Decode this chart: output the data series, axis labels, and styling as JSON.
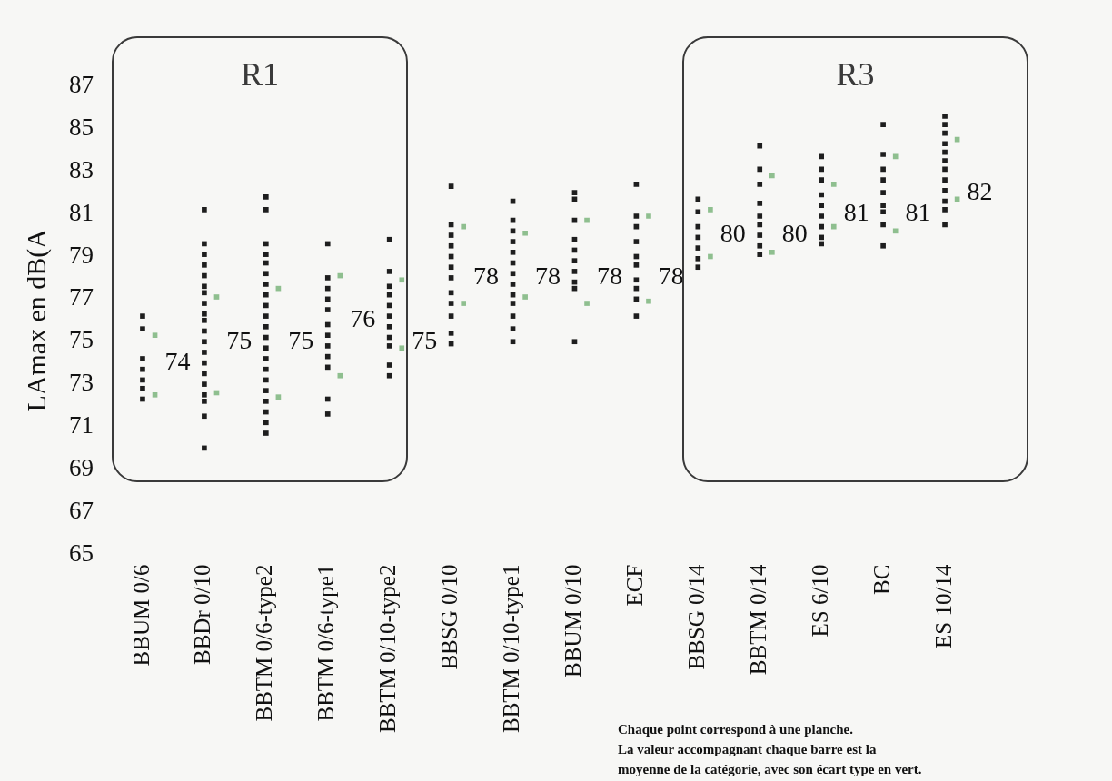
{
  "chart_data": {
    "type": "scatter",
    "ylabel": "LAmax en dB(A",
    "categories": [
      "BBUM 0/6",
      "BBDr 0/10",
      "BBTM 0/6-type2",
      "BBTM 0/6-type1",
      "BBTM 0/10-type2",
      "BBSG 0/10",
      "BBTM 0/10-type1",
      "BBUM 0/10",
      "ECF",
      "BBSG 0/14",
      "BBTM 0/14",
      "ES 6/10",
      "BC",
      "ES 10/14"
    ],
    "ylim": [
      65,
      87
    ],
    "yticks": [
      65,
      67,
      69,
      71,
      73,
      75,
      77,
      79,
      81,
      83,
      85,
      87
    ],
    "grid": false,
    "legend": false,
    "marker": "square",
    "series": [
      {
        "color": "#1e1e1e",
        "x": [
          "BBUM 0/6",
          "BBUM 0/6",
          "BBUM 0/6",
          "BBUM 0/6",
          "BBUM 0/6",
          "BBUM 0/6",
          "BBUM 0/6",
          "BBDr 0/10",
          "BBDr 0/10",
          "BBDr 0/10",
          "BBDr 0/10",
          "BBDr 0/10",
          "BBDr 0/10",
          "BBDr 0/10",
          "BBDr 0/10",
          "BBDr 0/10",
          "BBDr 0/10",
          "BBDr 0/10",
          "BBDr 0/10",
          "BBDr 0/10",
          "BBDr 0/10",
          "BBDr 0/10",
          "BBDr 0/10",
          "BBDr 0/10",
          "BBDr 0/10",
          "BBDr 0/10",
          "BBDr 0/10",
          "BBTM 0/6-type2",
          "BBTM 0/6-type2",
          "BBTM 0/6-type2",
          "BBTM 0/6-type2",
          "BBTM 0/6-type2",
          "BBTM 0/6-type2",
          "BBTM 0/6-type2",
          "BBTM 0/6-type2",
          "BBTM 0/6-type2",
          "BBTM 0/6-type2",
          "BBTM 0/6-type2",
          "BBTM 0/6-type2",
          "BBTM 0/6-type2",
          "BBTM 0/6-type2",
          "BBTM 0/6-type2",
          "BBTM 0/6-type2",
          "BBTM 0/6-type2",
          "BBTM 0/6-type2",
          "BBTM 0/6-type2",
          "BBTM 0/6-type2",
          "BBTM 0/6-type2",
          "BBTM 0/6-type1",
          "BBTM 0/6-type1",
          "BBTM 0/6-type1",
          "BBTM 0/6-type1",
          "BBTM 0/6-type1",
          "BBTM 0/6-type1",
          "BBTM 0/6-type1",
          "BBTM 0/6-type1",
          "BBTM 0/6-type1",
          "BBTM 0/6-type1",
          "BBTM 0/6-type1",
          "BBTM 0/6-type1",
          "BBTM 0/10-type2",
          "BBTM 0/10-type2",
          "BBTM 0/10-type2",
          "BBTM 0/10-type2",
          "BBTM 0/10-type2",
          "BBTM 0/10-type2",
          "BBTM 0/10-type2",
          "BBTM 0/10-type2",
          "BBTM 0/10-type2",
          "BBTM 0/10-type2",
          "BBTM 0/10-type2",
          "BBSG 0/10",
          "BBSG 0/10",
          "BBSG 0/10",
          "BBSG 0/10",
          "BBSG 0/10",
          "BBSG 0/10",
          "BBSG 0/10",
          "BBSG 0/10",
          "BBSG 0/10",
          "BBSG 0/10",
          "BBSG 0/10",
          "BBSG 0/10",
          "BBTM 0/10-type1",
          "BBTM 0/10-type1",
          "BBTM 0/10-type1",
          "BBTM 0/10-type1",
          "BBTM 0/10-type1",
          "BBTM 0/10-type1",
          "BBTM 0/10-type1",
          "BBTM 0/10-type1",
          "BBTM 0/10-type1",
          "BBTM 0/10-type1",
          "BBTM 0/10-type1",
          "BBTM 0/10-type1",
          "BBTM 0/10-type1",
          "BBUM 0/10",
          "BBUM 0/10",
          "BBUM 0/10",
          "BBUM 0/10",
          "BBUM 0/10",
          "BBUM 0/10",
          "BBUM 0/10",
          "BBUM 0/10",
          "BBUM 0/10",
          "BBUM 0/10",
          "ECF",
          "ECF",
          "ECF",
          "ECF",
          "ECF",
          "ECF",
          "ECF",
          "ECF",
          "ECF",
          "ECF",
          "BBSG 0/14",
          "BBSG 0/14",
          "BBSG 0/14",
          "BBSG 0/14",
          "BBSG 0/14",
          "BBSG 0/14",
          "BBSG 0/14",
          "BBTM 0/14",
          "BBTM 0/14",
          "BBTM 0/14",
          "BBTM 0/14",
          "BBTM 0/14",
          "BBTM 0/14",
          "BBTM 0/14",
          "BBTM 0/14",
          "BBTM 0/14",
          "ES 6/10",
          "ES 6/10",
          "ES 6/10",
          "ES 6/10",
          "ES 6/10",
          "ES 6/10",
          "ES 6/10",
          "ES 6/10",
          "ES 6/10",
          "BC",
          "BC",
          "BC",
          "BC",
          "BC",
          "BC",
          "BC",
          "BC",
          "BC",
          "ES 10/14",
          "ES 10/14",
          "ES 10/14",
          "ES 10/14",
          "ES 10/14",
          "ES 10/14",
          "ES 10/14",
          "ES 10/14",
          "ES 10/14",
          "ES 10/14",
          "ES 10/14",
          "ES 10/14"
        ],
        "values": [
          76.2,
          75.6,
          74.2,
          73.7,
          73.2,
          72.8,
          72.3,
          81.2,
          79.6,
          79.1,
          78.6,
          78.1,
          77.6,
          77.3,
          76.8,
          76.3,
          76.0,
          75.5,
          75.0,
          74.5,
          74.0,
          73.5,
          73.0,
          72.5,
          72.2,
          71.5,
          70.0,
          81.8,
          81.2,
          79.6,
          79.1,
          78.7,
          78.2,
          77.7,
          77.2,
          76.7,
          76.2,
          75.7,
          75.2,
          74.7,
          74.2,
          73.7,
          73.2,
          72.7,
          72.2,
          71.7,
          71.2,
          70.7,
          79.6,
          78.0,
          77.5,
          77.0,
          76.5,
          75.8,
          75.3,
          74.8,
          74.3,
          73.8,
          72.3,
          71.6,
          79.8,
          78.3,
          77.6,
          77.2,
          76.7,
          76.2,
          75.7,
          75.2,
          74.8,
          73.9,
          73.4,
          82.3,
          80.5,
          80.0,
          79.5,
          79.0,
          78.5,
          78.0,
          77.3,
          76.8,
          76.2,
          75.4,
          74.9,
          81.6,
          80.7,
          80.2,
          79.7,
          79.2,
          78.7,
          78.2,
          77.7,
          77.2,
          76.8,
          76.2,
          75.6,
          75.0,
          82.0,
          81.7,
          80.7,
          79.8,
          79.3,
          78.8,
          78.3,
          77.8,
          77.5,
          75.0,
          82.4,
          80.9,
          80.4,
          79.7,
          79.0,
          78.6,
          77.9,
          77.5,
          77.0,
          76.2,
          81.7,
          81.1,
          80.4,
          79.9,
          79.4,
          78.9,
          78.5,
          84.2,
          83.1,
          82.4,
          81.5,
          80.9,
          80.5,
          80.0,
          79.5,
          79.1,
          83.7,
          83.1,
          82.6,
          81.9,
          81.4,
          80.9,
          80.4,
          79.9,
          79.6,
          85.2,
          83.8,
          83.1,
          82.6,
          82.0,
          81.4,
          81.1,
          80.5,
          79.5,
          85.6,
          85.2,
          84.8,
          84.3,
          83.9,
          83.5,
          83.1,
          82.6,
          82.1,
          81.6,
          81.2,
          80.5
        ]
      },
      {
        "color": "#8fbf8f",
        "x": [
          "BBUM 0/6",
          "BBUM 0/6",
          "BBDr 0/10",
          "BBDr 0/10",
          "BBTM 0/6-type2",
          "BBTM 0/6-type2",
          "BBTM 0/6-type1",
          "BBTM 0/6-type1",
          "BBTM 0/10-type2",
          "BBTM 0/10-type2",
          "BBSG 0/10",
          "BBSG 0/10",
          "BBTM 0/10-type1",
          "BBTM 0/10-type1",
          "BBUM 0/10",
          "BBUM 0/10",
          "ECF",
          "ECF",
          "BBSG 0/14",
          "BBSG 0/14",
          "BBTM 0/14",
          "BBTM 0/14",
          "ES 6/10",
          "ES 6/10",
          "BC",
          "BC",
          "ES 10/14",
          "ES 10/14"
        ],
        "values": [
          72.5,
          75.3,
          72.6,
          77.1,
          72.4,
          77.5,
          73.4,
          78.1,
          74.7,
          77.9,
          76.8,
          80.4,
          77.1,
          80.1,
          76.8,
          80.7,
          76.9,
          80.9,
          79.0,
          81.2,
          79.2,
          82.8,
          80.4,
          82.4,
          80.2,
          83.7,
          81.7,
          84.5
        ]
      }
    ],
    "annotations": [
      {
        "text": "74",
        "x": "BBUM 0/6",
        "y": 74
      },
      {
        "text": "75",
        "x": "BBDr 0/10",
        "y": 75
      },
      {
        "text": "75",
        "x": "BBTM 0/6-type2",
        "y": 75
      },
      {
        "text": "76",
        "x": "BBTM 0/6-type1",
        "y": 76
      },
      {
        "text": "75",
        "x": "BBTM 0/10-type2",
        "y": 75
      },
      {
        "text": "78",
        "x": "BBSG 0/10",
        "y": 78
      },
      {
        "text": "78",
        "x": "BBTM 0/10-type1",
        "y": 78
      },
      {
        "text": "78",
        "x": "BBUM 0/10",
        "y": 78
      },
      {
        "text": "78",
        "x": "ECF",
        "y": 78
      },
      {
        "text": "80",
        "x": "BBSG 0/14",
        "y": 80
      },
      {
        "text": "80",
        "x": "BBTM 0/14",
        "y": 80
      },
      {
        "text": "81",
        "x": "ES 6/10",
        "y": 81
      },
      {
        "text": "81",
        "x": "BC",
        "y": 81
      },
      {
        "text": "82",
        "x": "ES 10/14",
        "y": 82
      },
      "R1",
      "R3",
      "Chaque point correspond à une planche.",
      "La valeur accompagnant chaque barre est la",
      "moyenne de la catégorie, avec son écart type en vert."
    ]
  }
}
